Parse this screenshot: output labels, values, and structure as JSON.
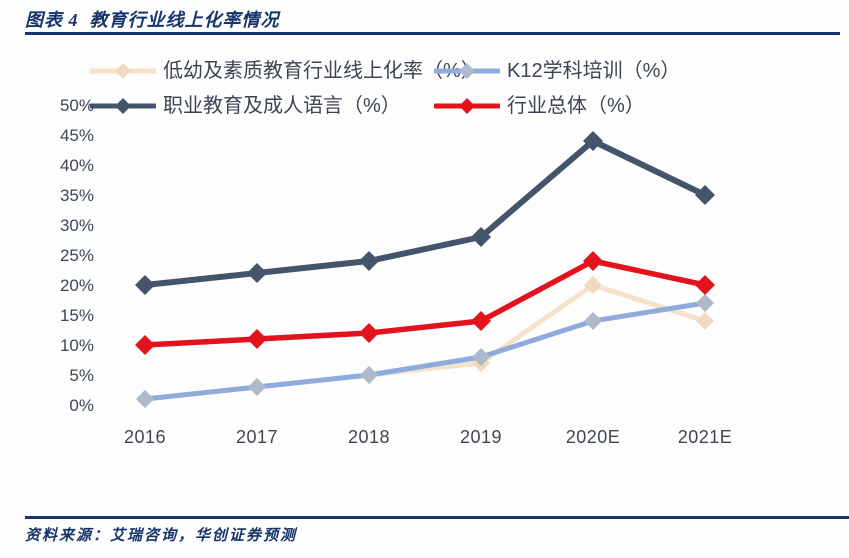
{
  "header": {
    "title": "图表 4  教育行业线上化率情况"
  },
  "chart_data": {
    "type": "line",
    "title": "教育行业线上化率情况",
    "categories": [
      "2016",
      "2017",
      "2018",
      "2019",
      "2020E",
      "2021E"
    ],
    "series": [
      {
        "name": "低幼及素质教育行业线上化率（%）",
        "values": [
          1,
          3,
          5,
          7,
          20,
          14
        ],
        "line_color": "#f6e1ca",
        "marker_color": "#f1d9bd"
      },
      {
        "name": "K12学科培训（%）",
        "values": [
          1,
          3,
          5,
          8,
          14,
          17
        ],
        "line_color": "#8faadc",
        "marker_color": "#aeb9ca"
      },
      {
        "name": "职业教育及成人语言（%）",
        "values": [
          20,
          22,
          24,
          28,
          44,
          35
        ],
        "line_color": "#44546a",
        "marker_color": "#44546a"
      },
      {
        "name": "行业总体（%）",
        "values": [
          10,
          11,
          12,
          14,
          24,
          20
        ],
        "line_color": "#e2131d",
        "marker_color": "#e2131d"
      }
    ],
    "ylim": [
      0,
      50
    ],
    "ytick_labels": [
      "0%",
      "5%",
      "10%",
      "15%",
      "20%",
      "25%",
      "30%",
      "35%",
      "40%",
      "45%",
      "50%"
    ],
    "xlabel": "",
    "ylabel": "",
    "grid": false,
    "legend_position": "top"
  },
  "footer": {
    "source": "资料来源：艾瑞咨询，华创证券预测"
  },
  "colors": {
    "accent_navy": "#17356b",
    "axis_text": "#3e4655",
    "background": "#fdfdfd"
  }
}
